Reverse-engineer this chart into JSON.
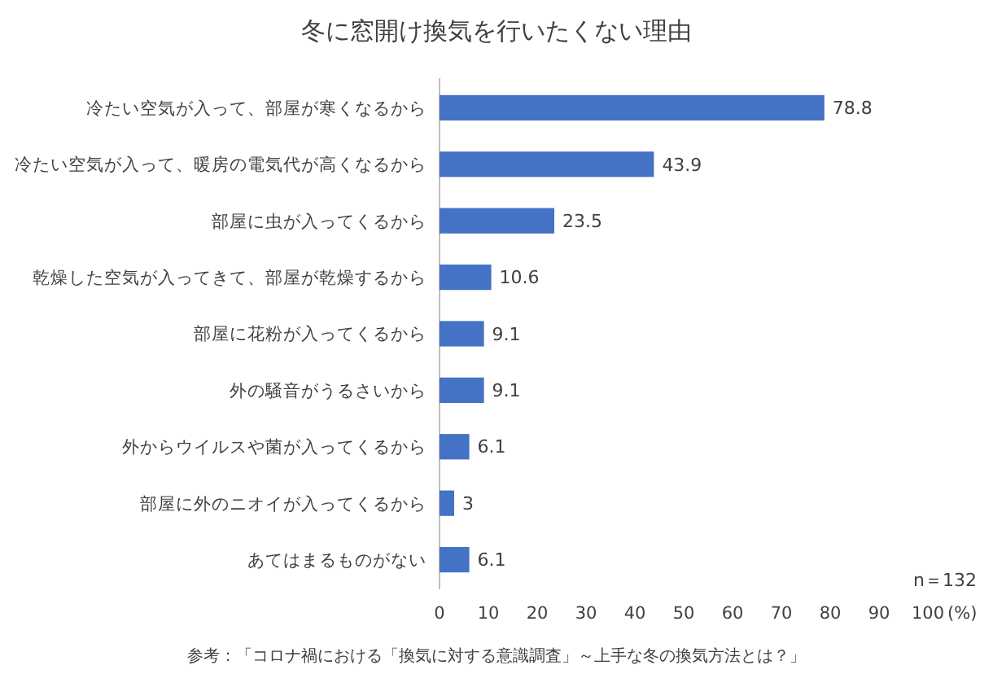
{
  "chart_data": {
    "type": "bar",
    "orientation": "horizontal",
    "title": "冬に窓開け換気を行いたくない理由",
    "categories": [
      "冷たい空気が入って、部屋が寒くなるから",
      "冷たい空気が入って、暖房の電気代が高くなるから",
      "部屋に虫が入ってくるから",
      "乾燥した空気が入ってきて、部屋が乾燥するから",
      "部屋に花粉が入ってくるから",
      "外の騒音がうるさいから",
      "外からウイルスや菌が入ってくるから",
      "部屋に外のニオイが入ってくるから",
      "あてはまるものがない"
    ],
    "values": [
      78.8,
      43.9,
      23.5,
      10.6,
      9.1,
      9.1,
      6.1,
      3,
      6.1
    ],
    "color": "#4472c4",
    "data_labels": true,
    "xlim": [
      0,
      100
    ],
    "xticks": [
      0,
      10,
      20,
      30,
      40,
      50,
      60,
      70,
      80,
      90,
      100
    ],
    "xlabel": "(%)",
    "grid": false,
    "annotations": [
      "n＝132",
      "参考：「コロナ禍における「換気に対する意識調査」～上手な冬の換気方法とは？」"
    ]
  }
}
